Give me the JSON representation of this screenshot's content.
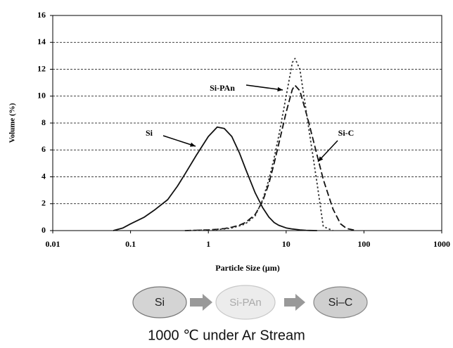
{
  "chart_data": {
    "type": "line",
    "x_label": "Particle Size (μm)",
    "y_label": "Volume (%)",
    "xscale": "log",
    "xlim": [
      0.01,
      1000
    ],
    "xticks": [
      0.01,
      0.1,
      1,
      10,
      100,
      1000
    ],
    "ylim": [
      0,
      16
    ],
    "yticks": [
      0,
      2,
      4,
      6,
      8,
      10,
      12,
      14,
      16
    ],
    "grid": true,
    "x": [
      0.06,
      0.08,
      0.1,
      0.15,
      0.2,
      0.3,
      0.4,
      0.5,
      0.7,
      1,
      1.3,
      1.6,
      2,
      2.5,
      3,
      4,
      5,
      6,
      7,
      8,
      10,
      12,
      13,
      15,
      18,
      20,
      25,
      30,
      40,
      50,
      60,
      80
    ],
    "series": [
      {
        "name": "Si",
        "color": "#111111",
        "style": "solid",
        "values": [
          0,
          0.2,
          0.5,
          1.0,
          1.5,
          2.3,
          3.3,
          4.2,
          5.6,
          7.0,
          7.7,
          7.6,
          7.0,
          5.8,
          4.6,
          2.8,
          1.7,
          1.0,
          0.6,
          0.4,
          0.2,
          0.12,
          0.1,
          0.05,
          0.02,
          0.01,
          0,
          null,
          null,
          null,
          null,
          null
        ]
      },
      {
        "name": "Si-PAn",
        "color": "#111111",
        "style": "dashed",
        "values": [
          null,
          null,
          null,
          null,
          null,
          null,
          null,
          0,
          0.02,
          0.05,
          0.1,
          0.15,
          0.25,
          0.4,
          0.6,
          1.2,
          2.2,
          3.5,
          5.0,
          6.4,
          8.8,
          10.5,
          10.8,
          10.4,
          8.8,
          7.8,
          5.6,
          3.8,
          1.6,
          0.5,
          0.15,
          0
        ]
      },
      {
        "name": "Si-C",
        "color": "#333333",
        "style": "dotted",
        "values": [
          null,
          null,
          null,
          null,
          null,
          null,
          null,
          0,
          0.02,
          0.05,
          0.08,
          0.12,
          0.2,
          0.35,
          0.5,
          1.1,
          2.3,
          3.8,
          5.4,
          7.0,
          10.0,
          12.5,
          12.8,
          12.0,
          9.0,
          7.2,
          3.5,
          0.3,
          0,
          null,
          null,
          null
        ]
      }
    ]
  },
  "diagram": {
    "steps": [
      "Si",
      "Si-PAn",
      "Si–C"
    ],
    "caption": "1000 ℃ under Ar Stream"
  }
}
